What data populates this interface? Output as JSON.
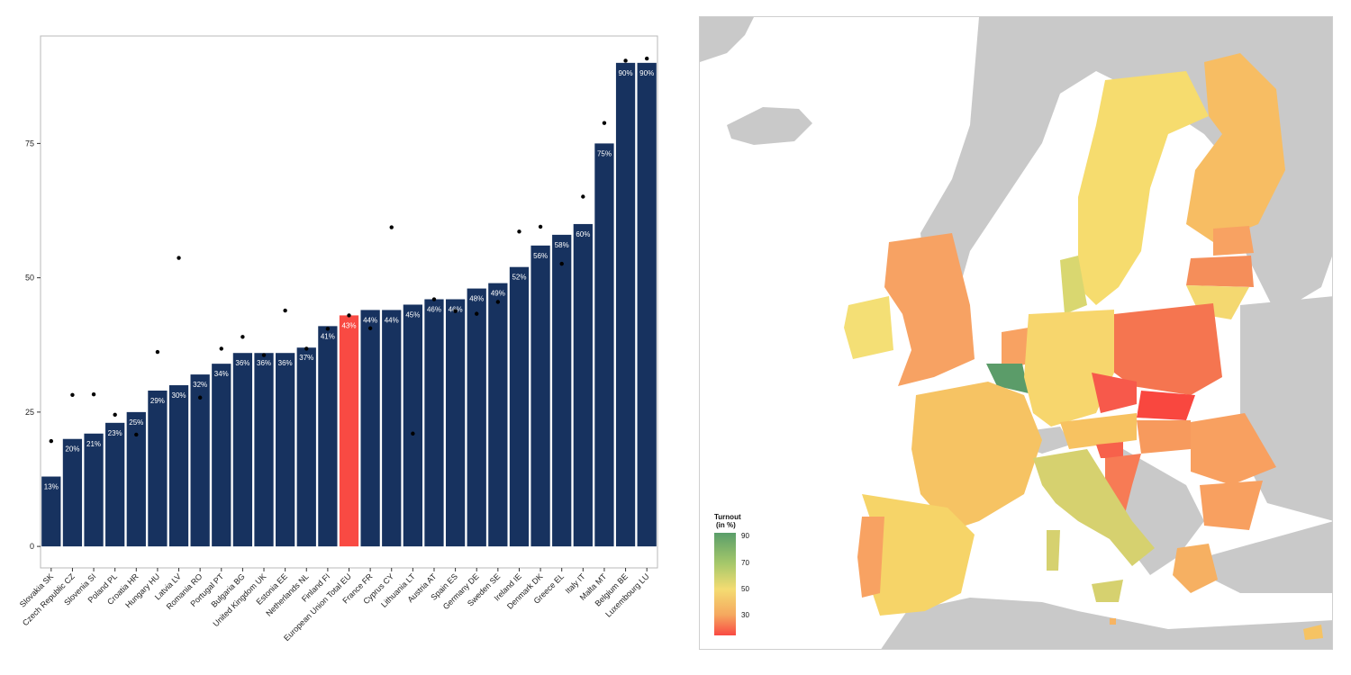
{
  "chart_data": [
    {
      "type": "bar",
      "categories": [
        "Slovakia SK",
        "Czech Republic CZ",
        "Slovenia SI",
        "Poland PL",
        "Croatia HR",
        "Hungary HU",
        "Latvia LV",
        "Romania RO",
        "Portugal PT",
        "Bulgaria BG",
        "United Kingdom UK",
        "Estonia EE",
        "Netherlands NL",
        "Finland FI",
        "European Union Total EU",
        "France FR",
        "Cyprus CY",
        "Lithuania LT",
        "Austria AT",
        "Spain ES",
        "Germany DE",
        "Sweden SE",
        "Ireland IE",
        "Denmark DK",
        "Greece EL",
        "Italy IT",
        "Malta MT",
        "Belgium BE",
        "Luxembourg LU"
      ],
      "values": [
        13,
        20,
        21,
        23,
        25,
        29,
        30,
        32,
        34,
        36,
        36,
        36,
        37,
        41,
        43,
        44,
        44,
        45,
        46,
        46,
        48,
        49,
        52,
        56,
        58,
        60,
        75,
        90,
        90
      ],
      "labels": [
        "13%",
        "20%",
        "21%",
        "23%",
        "25%",
        "29%",
        "30%",
        "32%",
        "34%",
        "36%",
        "36%",
        "36%",
        "37%",
        "41%",
        "43%",
        "44%",
        "44%",
        "45%",
        "46%",
        "46%",
        "48%",
        "49%",
        "52%",
        "56%",
        "58%",
        "60%",
        "75%",
        "90%",
        "90%"
      ],
      "points": [
        19.6,
        28.2,
        28.3,
        24.5,
        20.8,
        36.2,
        53.7,
        27.7,
        36.8,
        39.0,
        35.6,
        43.9,
        36.8,
        40.5,
        43.0,
        40.6,
        59.4,
        21.0,
        46.0,
        43.8,
        43.3,
        45.5,
        58.6,
        59.5,
        52.6,
        65.1,
        78.8,
        90.4,
        90.8
      ],
      "highlight": "European Union Total EU",
      "ylim": [
        -4,
        95
      ],
      "yticks": [
        0,
        25,
        50,
        75
      ],
      "colors": {
        "bar": "#17325f",
        "highlight": "#f94a43",
        "point": "#000000",
        "label": "#ffffff"
      },
      "grid": false
    },
    {
      "type": "heatmap",
      "legend": {
        "title_line1": "Turnout",
        "title_line2": "(in %)",
        "ticks": [
          90,
          70,
          50,
          30
        ],
        "colors": [
          "#5a9e6a",
          "#a6c86a",
          "#f4dc72",
          "#f5a85f",
          "#f94a43"
        ]
      }
    }
  ]
}
